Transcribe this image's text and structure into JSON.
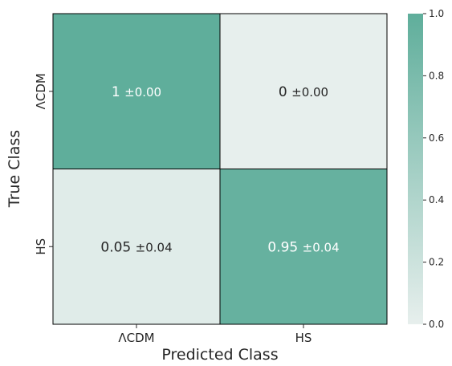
{
  "chart_data": {
    "type": "heatmap",
    "title": "",
    "xlabel": "Predicted Class",
    "ylabel": "True Class",
    "categories_x": [
      "ΛCDM",
      "HS"
    ],
    "categories_y": [
      "ΛCDM",
      "HS"
    ],
    "values": [
      [
        1.0,
        0.0
      ],
      [
        0.05,
        0.95
      ]
    ],
    "cell_labels": [
      [
        {
          "main": "1",
          "err": "±0.00"
        },
        {
          "main": "0",
          "err": "±0.00"
        }
      ],
      [
        {
          "main": "0.05",
          "err": "±0.04"
        },
        {
          "main": "0.95",
          "err": "±0.04"
        }
      ]
    ],
    "colorbar": {
      "range": [
        0.0,
        1.0
      ],
      "ticks": [
        "0.0",
        "0.2",
        "0.4",
        "0.6",
        "0.8",
        "1.0"
      ]
    },
    "colors": {
      "low": "#e7efed",
      "high": "#5fae9b",
      "dark_text": "#262626",
      "light_text": "#ffffff",
      "border": "#000000"
    },
    "grid": false,
    "legend": "colorbar-right"
  }
}
